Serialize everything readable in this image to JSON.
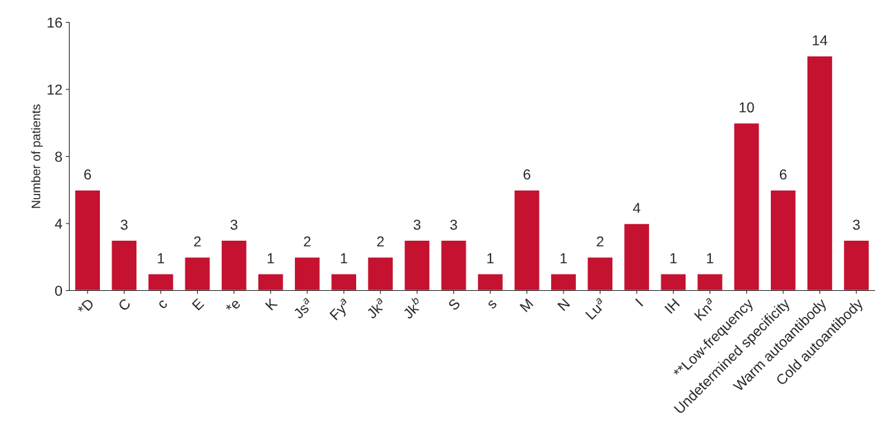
{
  "chart_data": {
    "type": "bar",
    "ylabel": "Number of patients",
    "categories": [
      "*D",
      "C",
      "c",
      "E",
      "*e",
      "K",
      "Js$^{a}$",
      "Fy$^{a}$",
      "Jk$^{a}$",
      "Jk$^{b}$",
      "S",
      "s",
      "M",
      "N",
      "Lu$^{a}$",
      "I",
      "IH",
      "Kn$^{a}$",
      "**Low-frequency",
      "Undetermined specificity",
      "Warm autoantibody",
      "Cold autoantibody"
    ],
    "values": [
      6,
      3,
      1,
      2,
      3,
      1,
      2,
      1,
      2,
      3,
      3,
      1,
      6,
      1,
      2,
      4,
      1,
      1,
      10,
      6,
      14,
      3
    ],
    "color": "#c41230",
    "ylim": [
      0,
      16
    ],
    "yticks": [
      0,
      4,
      8,
      12,
      16
    ],
    "data_labels": true,
    "grid": false,
    "legend": false
  }
}
